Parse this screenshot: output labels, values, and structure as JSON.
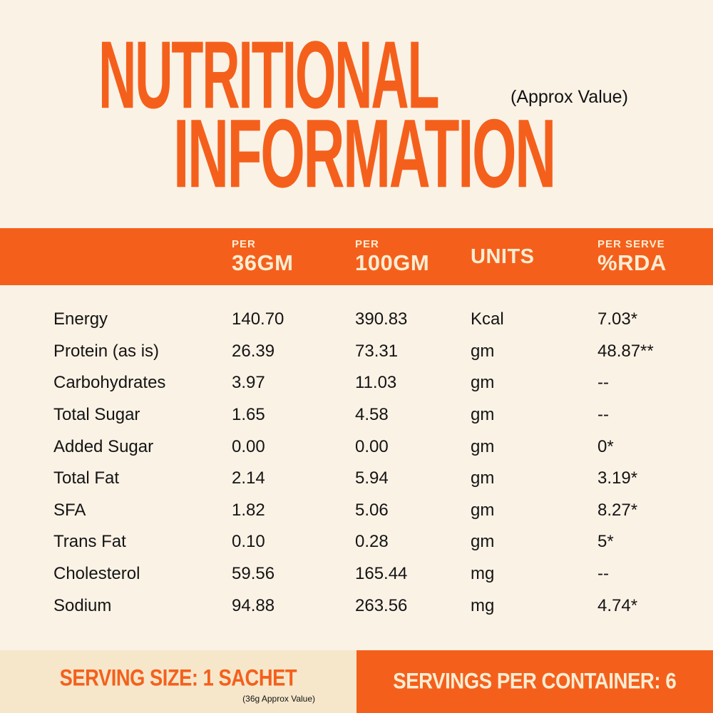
{
  "colors": {
    "orange": "#F4601C",
    "cream": "#FBF2E6",
    "beige": "#F6E7CB",
    "band_text": "#FBEDD3",
    "body_text": "#141414"
  },
  "title": {
    "line1": "NUTRITIONAL",
    "line2": "INFORMATION",
    "approx_note": "(Approx Value)"
  },
  "table": {
    "headers": {
      "col_36gm_small": "PER",
      "col_36gm_big": "36GM",
      "col_100gm_small": "PER",
      "col_100gm_big": "100GM",
      "col_units": "UNITS",
      "col_rda_small": "PER SERVE",
      "col_rda_big": "%RDA"
    },
    "rows": [
      {
        "label": "Energy",
        "per36": "140.70",
        "per100": "390.83",
        "units": "Kcal",
        "rda": "7.03*"
      },
      {
        "label": "Protein (as is)",
        "per36": "26.39",
        "per100": "73.31",
        "units": "gm",
        "rda": "48.87**"
      },
      {
        "label": "Carbohydrates",
        "per36": "3.97",
        "per100": "11.03",
        "units": "gm",
        "rda": "--"
      },
      {
        "label": "Total Sugar",
        "per36": "1.65",
        "per100": "4.58",
        "units": "gm",
        "rda": "--"
      },
      {
        "label": "Added Sugar",
        "per36": "0.00",
        "per100": "0.00",
        "units": "gm",
        "rda": "0*"
      },
      {
        "label": "Total Fat",
        "per36": "2.14",
        "per100": "5.94",
        "units": "gm",
        "rda": "3.19*"
      },
      {
        "label": "SFA",
        "per36": "1.82",
        "per100": "5.06",
        "units": "gm",
        "rda": "8.27*"
      },
      {
        "label": "Trans Fat",
        "per36": "0.10",
        "per100": "0.28",
        "units": "gm",
        "rda": "5*"
      },
      {
        "label": "Cholesterol",
        "per36": "59.56",
        "per100": "165.44",
        "units": "mg",
        "rda": "--"
      },
      {
        "label": "Sodium",
        "per36": "94.88",
        "per100": "263.56",
        "units": "mg",
        "rda": "4.74*"
      }
    ]
  },
  "footer": {
    "serving_size": "SERVING SIZE: 1 SACHET",
    "serving_note": "(36g Approx Value)",
    "servings_per_container": "SERVINGS PER CONTAINER: 6"
  }
}
